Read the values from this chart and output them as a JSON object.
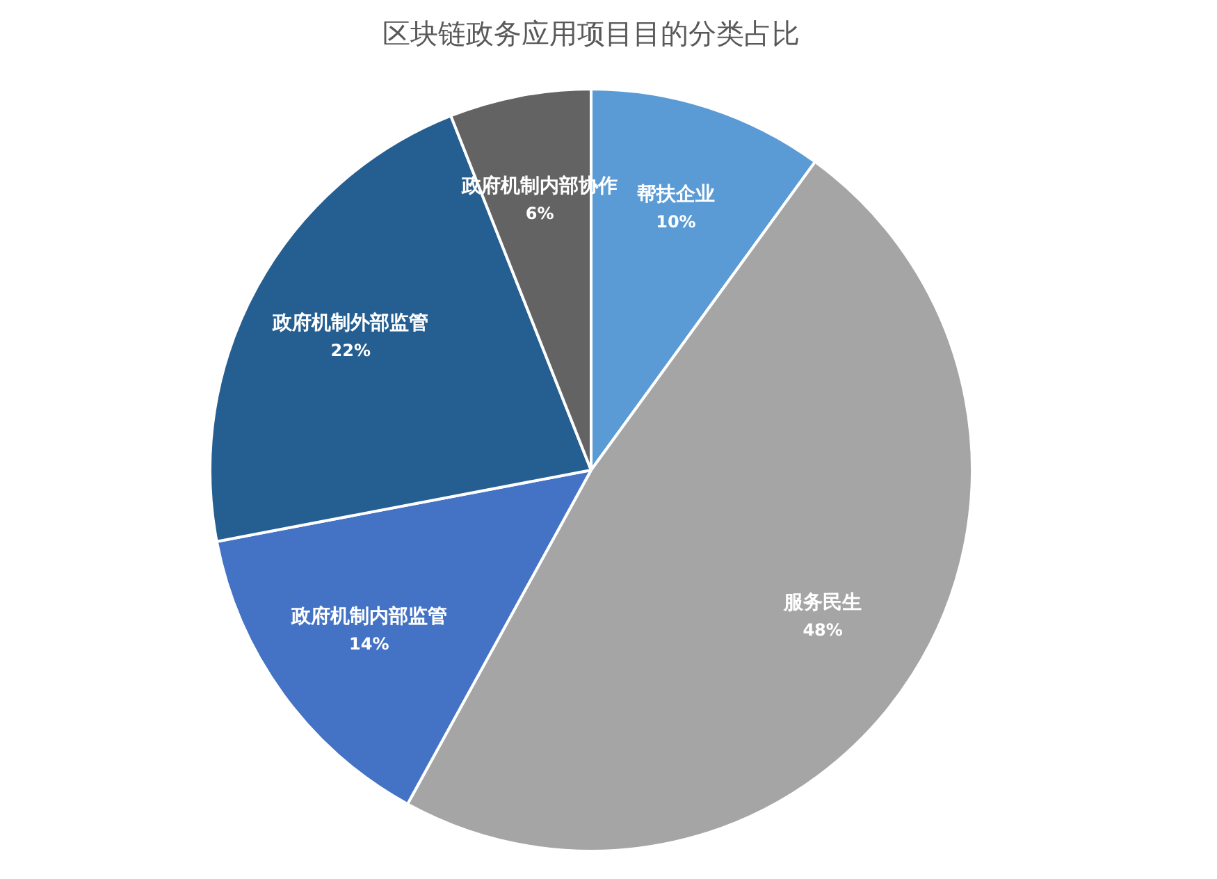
{
  "chart_data": {
    "type": "pie",
    "title": "区块链政务应用项目目的分类占比",
    "categories": [
      "帮扶企业",
      "服务民生",
      "政府机制内部监管",
      "政府机制外部监管",
      "政府机制内部协作"
    ],
    "values": [
      10,
      48,
      14,
      22,
      6
    ],
    "value_labels": [
      "10%",
      "48%",
      "14%",
      "22%",
      "6%"
    ],
    "colors": [
      "#5b9bd5",
      "#a5a5a5",
      "#4472c4",
      "#255e91",
      "#636363"
    ],
    "legend": false
  }
}
